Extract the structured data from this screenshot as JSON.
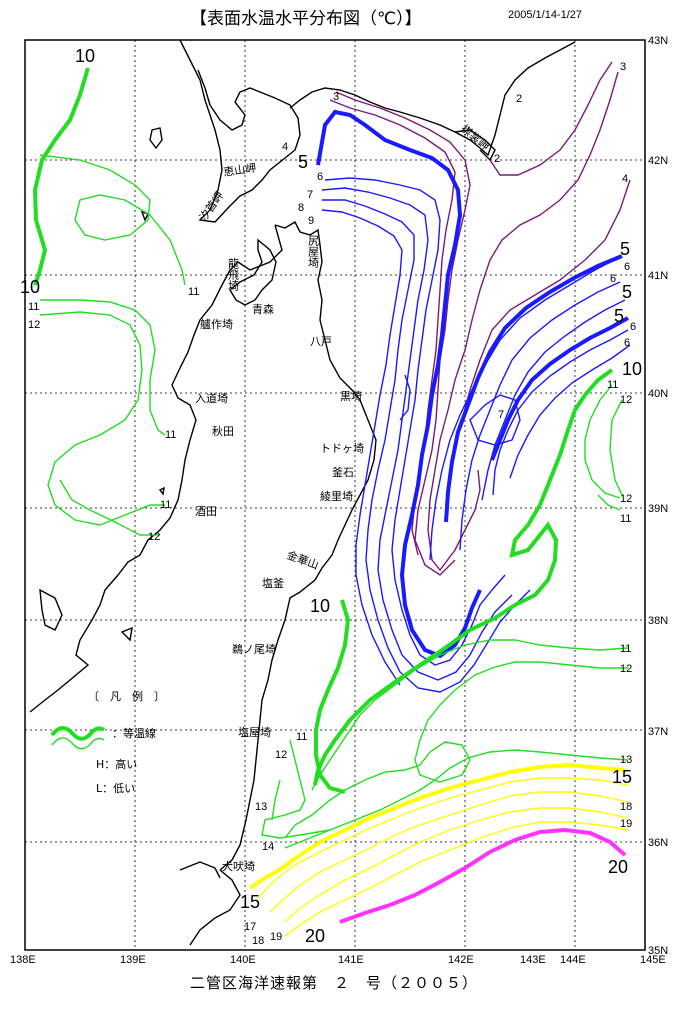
{
  "title": "【表面水温水平分布図（℃）】",
  "period": "2005/1/14-1/27",
  "footer": "二管区海洋速報第　２　号（２００５）",
  "axes": {
    "lon_labels": [
      "138E",
      "139E",
      "140E",
      "141E",
      "142E",
      "143E",
      "144E",
      "145E"
    ],
    "lat_labels": [
      "35N",
      "36N",
      "37N",
      "38N",
      "39N",
      "40N",
      "41N",
      "42N",
      "43N"
    ]
  },
  "legend": {
    "title": "〔　凡　例　〕",
    "isotherm": "：等温線",
    "high": "H：高い",
    "low": "L：低い"
  },
  "places": {
    "esan": "恵山岬",
    "shiokubi": "汐首岬",
    "erimo": "襟裳岬",
    "shiriya": "尻屋埼",
    "tappi": "龍飛埼",
    "aomori": "青森",
    "henashi": "艫作埼",
    "hachinohe": "八戸",
    "nyudo": "入道埼",
    "akita": "秋田",
    "kuroshima": "黒埼",
    "todoga": "トドヶ埼",
    "kamaishi": "釜石",
    "ryori": "綾里埼",
    "kinkazan": "金華山",
    "shiogama": "塩釜",
    "sakata": "酒田",
    "unoo": "鵜ノ尾埼",
    "shioya": "塩屋埼",
    "inubo": "犬吠埼"
  },
  "isotherm_labels": {
    "t2": "2",
    "t3": "3",
    "t4": "4",
    "t5": "5",
    "t6": "6",
    "t7": "7",
    "t8": "8",
    "t9": "9",
    "t10": "10",
    "t11": "11",
    "t12": "12",
    "t13": "13",
    "t14": "14",
    "t15": "15",
    "t17": "17",
    "t18": "18",
    "t19": "19",
    "t20": "20"
  },
  "colors": {
    "cold": "#7a1a7a",
    "cool": "#1a1aff",
    "mild": "#22dd22",
    "warm": "#ffff00",
    "hot": "#ff33ff",
    "grid": "#000000"
  }
}
